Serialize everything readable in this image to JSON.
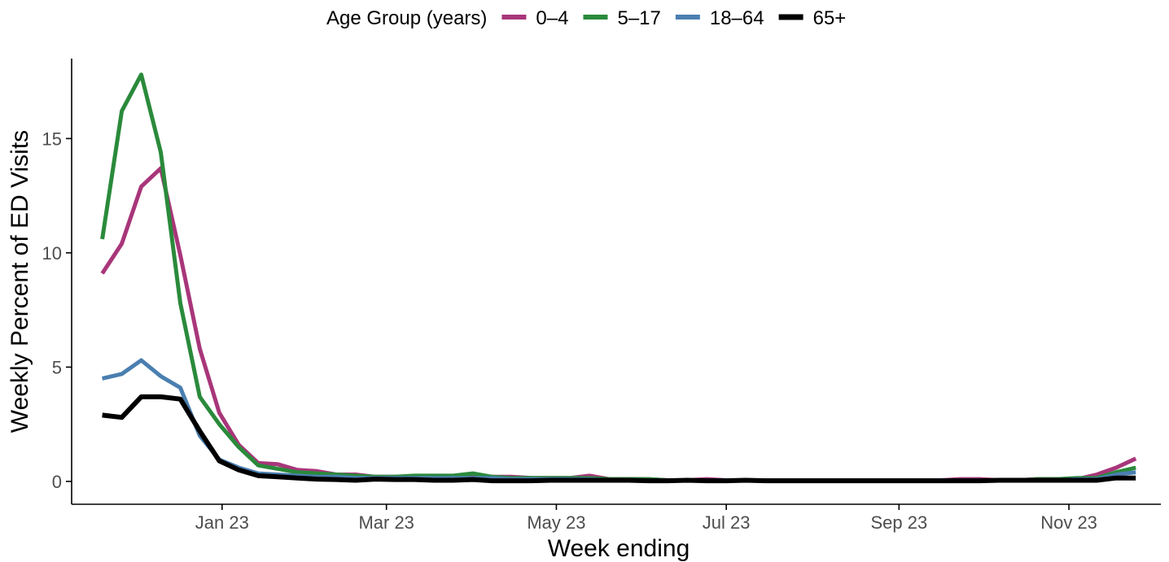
{
  "chart_data": {
    "type": "line",
    "xlabel": "Week ending",
    "ylabel": "Weekly Percent of ED Visits",
    "ylim": [
      -1,
      18.5
    ],
    "yticks": [
      0,
      5,
      10,
      15
    ],
    "xlim": [
      "2022-11-08",
      "2023-12-04"
    ],
    "xticks": [
      {
        "date": "2023-01-01",
        "label": "Jan 23"
      },
      {
        "date": "2023-03-01",
        "label": "Mar 23"
      },
      {
        "date": "2023-05-01",
        "label": "May 23"
      },
      {
        "date": "2023-07-01",
        "label": "Jul 23"
      },
      {
        "date": "2023-09-01",
        "label": "Sep 23"
      },
      {
        "date": "2023-11-01",
        "label": "Nov 23"
      }
    ],
    "grid": false,
    "legend": {
      "title": "Age Group (years)",
      "placement": "top"
    },
    "x": [
      "2022-11-19",
      "2022-11-26",
      "2022-12-03",
      "2022-12-10",
      "2022-12-17",
      "2022-12-24",
      "2022-12-31",
      "2023-01-07",
      "2023-01-14",
      "2023-01-21",
      "2023-01-28",
      "2023-02-04",
      "2023-02-11",
      "2023-02-18",
      "2023-02-25",
      "2023-03-04",
      "2023-03-11",
      "2023-03-18",
      "2023-03-25",
      "2023-04-01",
      "2023-04-08",
      "2023-04-15",
      "2023-04-22",
      "2023-04-29",
      "2023-05-06",
      "2023-05-13",
      "2023-05-20",
      "2023-05-27",
      "2023-06-03",
      "2023-06-10",
      "2023-06-17",
      "2023-06-24",
      "2023-07-01",
      "2023-07-08",
      "2023-07-15",
      "2023-07-22",
      "2023-07-29",
      "2023-08-05",
      "2023-08-12",
      "2023-08-19",
      "2023-08-26",
      "2023-09-02",
      "2023-09-09",
      "2023-09-16",
      "2023-09-23",
      "2023-09-30",
      "2023-10-07",
      "2023-10-14",
      "2023-10-21",
      "2023-10-28",
      "2023-11-04",
      "2023-11-11",
      "2023-11-18",
      "2023-11-25"
    ],
    "series": [
      {
        "name": "0–4",
        "color": "#a8367a",
        "values": [
          9.1,
          10.4,
          12.9,
          13.7,
          9.9,
          5.8,
          3.0,
          1.6,
          0.8,
          0.75,
          0.5,
          0.45,
          0.3,
          0.3,
          0.2,
          0.2,
          0.2,
          0.2,
          0.2,
          0.2,
          0.2,
          0.2,
          0.15,
          0.15,
          0.15,
          0.25,
          0.1,
          0.1,
          0.1,
          0.05,
          0.05,
          0.1,
          0.05,
          0.05,
          0.05,
          0.05,
          0.05,
          0.05,
          0.05,
          0.05,
          0.05,
          0.05,
          0.05,
          0.05,
          0.1,
          0.1,
          0.05,
          0.05,
          0.1,
          0.1,
          0.1,
          0.3,
          0.6,
          1.0
        ]
      },
      {
        "name": "5–17",
        "color": "#2a8a3b",
        "values": [
          10.6,
          16.2,
          17.8,
          14.4,
          7.8,
          3.7,
          2.5,
          1.5,
          0.7,
          0.55,
          0.4,
          0.35,
          0.3,
          0.25,
          0.2,
          0.2,
          0.25,
          0.25,
          0.25,
          0.35,
          0.2,
          0.15,
          0.15,
          0.15,
          0.15,
          0.15,
          0.1,
          0.1,
          0.1,
          0.05,
          0.05,
          0.05,
          0.05,
          0.05,
          0.05,
          0.05,
          0.05,
          0.05,
          0.05,
          0.05,
          0.05,
          0.05,
          0.05,
          0.05,
          0.05,
          0.05,
          0.05,
          0.05,
          0.1,
          0.1,
          0.15,
          0.15,
          0.4,
          0.6
        ]
      },
      {
        "name": "18–64",
        "color": "#4a7fb0",
        "values": [
          4.5,
          4.7,
          5.3,
          4.6,
          4.1,
          2.0,
          0.95,
          0.6,
          0.35,
          0.3,
          0.25,
          0.2,
          0.2,
          0.15,
          0.15,
          0.15,
          0.15,
          0.15,
          0.15,
          0.15,
          0.15,
          0.1,
          0.1,
          0.1,
          0.1,
          0.1,
          0.05,
          0.05,
          0.05,
          0.05,
          0.05,
          0.05,
          0.05,
          0.05,
          0.05,
          0.05,
          0.05,
          0.05,
          0.05,
          0.05,
          0.05,
          0.05,
          0.05,
          0.05,
          0.05,
          0.05,
          0.05,
          0.05,
          0.05,
          0.05,
          0.1,
          0.1,
          0.3,
          0.4
        ]
      },
      {
        "name": "65+",
        "color": "#000000",
        "values": [
          2.9,
          2.8,
          3.7,
          3.7,
          3.6,
          2.2,
          0.9,
          0.5,
          0.25,
          0.2,
          0.15,
          0.1,
          0.08,
          0.05,
          0.1,
          0.08,
          0.08,
          0.05,
          0.05,
          0.08,
          0.03,
          0.03,
          0.03,
          0.05,
          0.05,
          0.05,
          0.05,
          0.05,
          0.03,
          0.03,
          0.05,
          0.03,
          0.03,
          0.05,
          0.03,
          0.03,
          0.03,
          0.03,
          0.03,
          0.03,
          0.03,
          0.03,
          0.03,
          0.03,
          0.03,
          0.03,
          0.05,
          0.05,
          0.05,
          0.05,
          0.05,
          0.05,
          0.15,
          0.15
        ]
      }
    ]
  }
}
